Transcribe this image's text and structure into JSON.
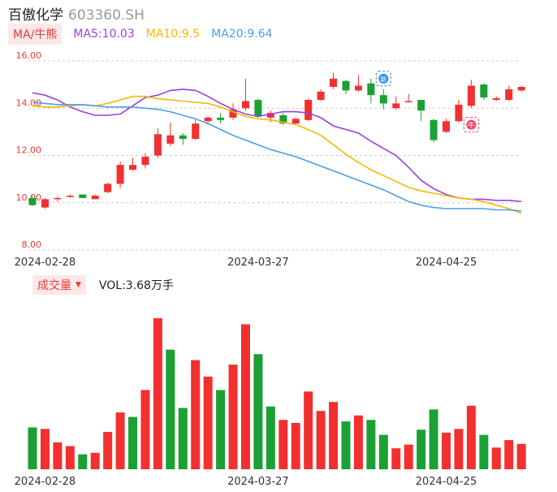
{
  "header": {
    "name": "百傲化学",
    "code": "603360.SH"
  },
  "ma": {
    "tab": "MA/牛熊",
    "items": [
      {
        "label": "MA5:10.03",
        "color": "#9b3fe0"
      },
      {
        "label": "MA10:9.5",
        "color": "#f5b800"
      },
      {
        "label": "MA20:9.64",
        "color": "#4a9fe6"
      }
    ]
  },
  "volume": {
    "tab": "成交量",
    "label": "VOL:3.68万手"
  },
  "badges": [
    {
      "text": "新",
      "color": "#2f8fe8"
    },
    {
      "text": "牛",
      "color": "#f04a6a"
    }
  ],
  "colors": {
    "up": "#f23030",
    "down": "#1aa033",
    "axis": "#e53935",
    "grid": "#cccccc"
  },
  "chart_data": [
    {
      "type": "candlestick",
      "ylim": [
        8,
        16
      ],
      "yticks": [
        "16.00",
        "14.00",
        "12.00",
        "10.00",
        "8.00"
      ],
      "xticks": [
        {
          "index": 1,
          "label": "2024-02-28"
        },
        {
          "index": 18,
          "label": "2024-03-27"
        },
        {
          "index": 33,
          "label": "2024-04-25"
        }
      ],
      "candles": [
        {
          "o": 10.2,
          "h": 10.3,
          "l": 9.85,
          "c": 9.9
        },
        {
          "o": 9.8,
          "h": 10.2,
          "l": 9.75,
          "c": 10.15
        },
        {
          "o": 10.15,
          "h": 10.28,
          "l": 10.05,
          "c": 10.2
        },
        {
          "o": 10.25,
          "h": 10.35,
          "l": 10.2,
          "c": 10.3
        },
        {
          "o": 10.35,
          "h": 10.35,
          "l": 10.2,
          "c": 10.2
        },
        {
          "o": 10.15,
          "h": 10.35,
          "l": 10.15,
          "c": 10.3
        },
        {
          "o": 10.45,
          "h": 10.85,
          "l": 10.4,
          "c": 10.8
        },
        {
          "o": 10.8,
          "h": 11.75,
          "l": 10.6,
          "c": 11.6
        },
        {
          "o": 11.4,
          "h": 11.9,
          "l": 11.35,
          "c": 11.6
        },
        {
          "o": 11.6,
          "h": 12.1,
          "l": 11.45,
          "c": 11.95
        },
        {
          "o": 12.0,
          "h": 13.15,
          "l": 11.9,
          "c": 12.9
        },
        {
          "o": 12.5,
          "h": 13.4,
          "l": 12.4,
          "c": 12.85
        },
        {
          "o": 12.85,
          "h": 12.95,
          "l": 12.45,
          "c": 12.7
        },
        {
          "o": 12.7,
          "h": 13.5,
          "l": 12.65,
          "c": 13.35
        },
        {
          "o": 13.45,
          "h": 13.65,
          "l": 13.3,
          "c": 13.6
        },
        {
          "o": 13.6,
          "h": 13.8,
          "l": 13.35,
          "c": 13.5
        },
        {
          "o": 13.6,
          "h": 14.2,
          "l": 13.5,
          "c": 13.95
        },
        {
          "o": 14.0,
          "h": 15.25,
          "l": 13.9,
          "c": 14.3
        },
        {
          "o": 14.35,
          "h": 14.4,
          "l": 13.6,
          "c": 13.65
        },
        {
          "o": 13.6,
          "h": 13.9,
          "l": 13.4,
          "c": 13.8
        },
        {
          "o": 13.7,
          "h": 13.8,
          "l": 13.3,
          "c": 13.35
        },
        {
          "o": 13.35,
          "h": 13.6,
          "l": 13.3,
          "c": 13.55
        },
        {
          "o": 13.5,
          "h": 14.4,
          "l": 13.45,
          "c": 14.35
        },
        {
          "o": 14.35,
          "h": 14.8,
          "l": 14.3,
          "c": 14.7
        },
        {
          "o": 14.9,
          "h": 15.5,
          "l": 14.8,
          "c": 15.25
        },
        {
          "o": 15.15,
          "h": 15.2,
          "l": 14.6,
          "c": 14.75
        },
        {
          "o": 14.75,
          "h": 15.4,
          "l": 14.7,
          "c": 14.95
        },
        {
          "o": 15.05,
          "h": 15.25,
          "l": 14.2,
          "c": 14.55
        },
        {
          "o": 14.55,
          "h": 14.8,
          "l": 13.95,
          "c": 14.2
        },
        {
          "o": 14.0,
          "h": 14.5,
          "l": 13.95,
          "c": 14.2
        },
        {
          "o": 14.25,
          "h": 14.6,
          "l": 14.25,
          "c": 14.3
        },
        {
          "o": 14.35,
          "h": 14.35,
          "l": 13.45,
          "c": 13.9
        },
        {
          "o": 13.5,
          "h": 13.55,
          "l": 12.55,
          "c": 12.65
        },
        {
          "o": 13.0,
          "h": 13.55,
          "l": 12.95,
          "c": 13.45
        },
        {
          "o": 13.45,
          "h": 14.35,
          "l": 13.4,
          "c": 14.15
        },
        {
          "o": 14.1,
          "h": 15.2,
          "l": 14.0,
          "c": 14.95
        },
        {
          "o": 15.0,
          "h": 15.05,
          "l": 14.35,
          "c": 14.45
        },
        {
          "o": 14.35,
          "h": 14.5,
          "l": 14.3,
          "c": 14.42
        },
        {
          "o": 14.35,
          "h": 14.95,
          "l": 14.3,
          "c": 14.8
        },
        {
          "o": 14.75,
          "h": 14.95,
          "l": 14.7,
          "c": 14.9
        }
      ],
      "ma_series": [
        {
          "name": "MA5",
          "color": "#9b3fe0",
          "values": [
            14.65,
            14.55,
            14.35,
            14.05,
            13.85,
            13.7,
            13.7,
            13.75,
            14.1,
            14.45,
            14.55,
            14.75,
            14.8,
            14.75,
            14.5,
            14.2,
            13.95,
            13.75,
            13.65,
            13.75,
            13.85,
            13.85,
            13.8,
            13.6,
            13.25,
            13.1,
            12.95,
            12.6,
            12.3,
            12.0,
            11.5,
            10.95,
            10.6,
            10.35,
            10.2,
            10.15,
            10.15,
            10.1,
            10.1,
            10.05
          ]
        },
        {
          "name": "MA10",
          "color": "#f5b800",
          "values": [
            14.1,
            14.05,
            14.05,
            14.1,
            14.15,
            14.1,
            14.2,
            14.35,
            14.5,
            14.5,
            14.4,
            14.35,
            14.3,
            14.25,
            14.2,
            14.05,
            13.85,
            13.65,
            13.55,
            13.5,
            13.4,
            13.3,
            13.1,
            12.85,
            12.45,
            12.05,
            11.7,
            11.4,
            11.15,
            10.9,
            10.65,
            10.5,
            10.4,
            10.3,
            10.2,
            10.15,
            10.05,
            9.9,
            9.75,
            9.55
          ]
        },
        {
          "name": "MA20",
          "color": "#4a9fe6",
          "values": [
            14.25,
            14.2,
            14.15,
            14.15,
            14.15,
            14.1,
            14.05,
            14.05,
            14.05,
            14.0,
            13.95,
            13.85,
            13.7,
            13.55,
            13.35,
            13.1,
            12.85,
            12.65,
            12.45,
            12.25,
            12.1,
            11.95,
            11.75,
            11.55,
            11.35,
            11.15,
            10.95,
            10.75,
            10.55,
            10.3,
            10.05,
            9.9,
            9.8,
            9.75,
            9.75,
            9.75,
            9.75,
            9.7,
            9.7,
            9.65
          ]
        }
      ],
      "badges": [
        {
          "index": 28,
          "value": 15.25,
          "badge": 0
        },
        {
          "index": 35,
          "value": 13.3,
          "badge": 1
        }
      ]
    },
    {
      "type": "bar",
      "title": "成交量",
      "xticks": [
        "2024-02-28",
        "2024-03-27",
        "2024-04-25"
      ],
      "values": [
        2.8,
        2.7,
        1.8,
        1.55,
        1.0,
        1.1,
        2.5,
        3.8,
        3.5,
        5.3,
        10.1,
        8.0,
        4.1,
        7.3,
        6.2,
        5.3,
        7.0,
        9.7,
        7.7,
        4.2,
        3.3,
        3.1,
        5.2,
        3.9,
        4.5,
        3.2,
        3.6,
        3.3,
        2.3,
        1.4,
        1.65,
        2.65,
        4.0,
        2.45,
        2.7,
        4.25,
        2.3,
        1.45,
        1.95,
        1.7
      ],
      "up": [
        false,
        true,
        true,
        true,
        false,
        true,
        true,
        true,
        false,
        true,
        true,
        false,
        false,
        true,
        true,
        false,
        true,
        true,
        false,
        false,
        true,
        true,
        true,
        true,
        true,
        false,
        true,
        false,
        false,
        true,
        true,
        false,
        false,
        true,
        true,
        true,
        false,
        true,
        true,
        true
      ]
    }
  ]
}
